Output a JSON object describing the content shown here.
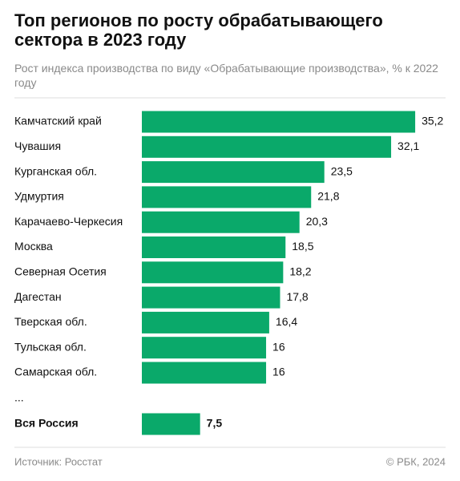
{
  "chart_data": {
    "type": "bar",
    "orientation": "horizontal",
    "title": "Топ регионов по росту обрабатывающего сектора в 2023 году",
    "subtitle": "Рост индекса производства по виду «Обрабатывающие производства», % к 2022 году",
    "categories": [
      "Камчатский край",
      "Чувашия",
      "Курганская обл.",
      "Удмуртия",
      "Карачаево-Черкесия",
      "Москва",
      "Северная Осетия",
      "Дагестан",
      "Тверская обл.",
      "Тульская обл.",
      "Самарская обл."
    ],
    "values": [
      35.2,
      32.1,
      23.5,
      21.8,
      20.3,
      18.5,
      18.2,
      17.8,
      16.4,
      16,
      16
    ],
    "value_labels": [
      "35,2",
      "32,1",
      "23,5",
      "21,8",
      "20,3",
      "18,5",
      "18,2",
      "17,8",
      "16,4",
      "16",
      "16"
    ],
    "ellipsis": "...",
    "total": {
      "label": "Вся Россия",
      "value": 7.5,
      "value_label": "7,5"
    },
    "color": "#0aa96a",
    "source": "Источник: Росстат",
    "copyright": "© РБК, 2024"
  }
}
